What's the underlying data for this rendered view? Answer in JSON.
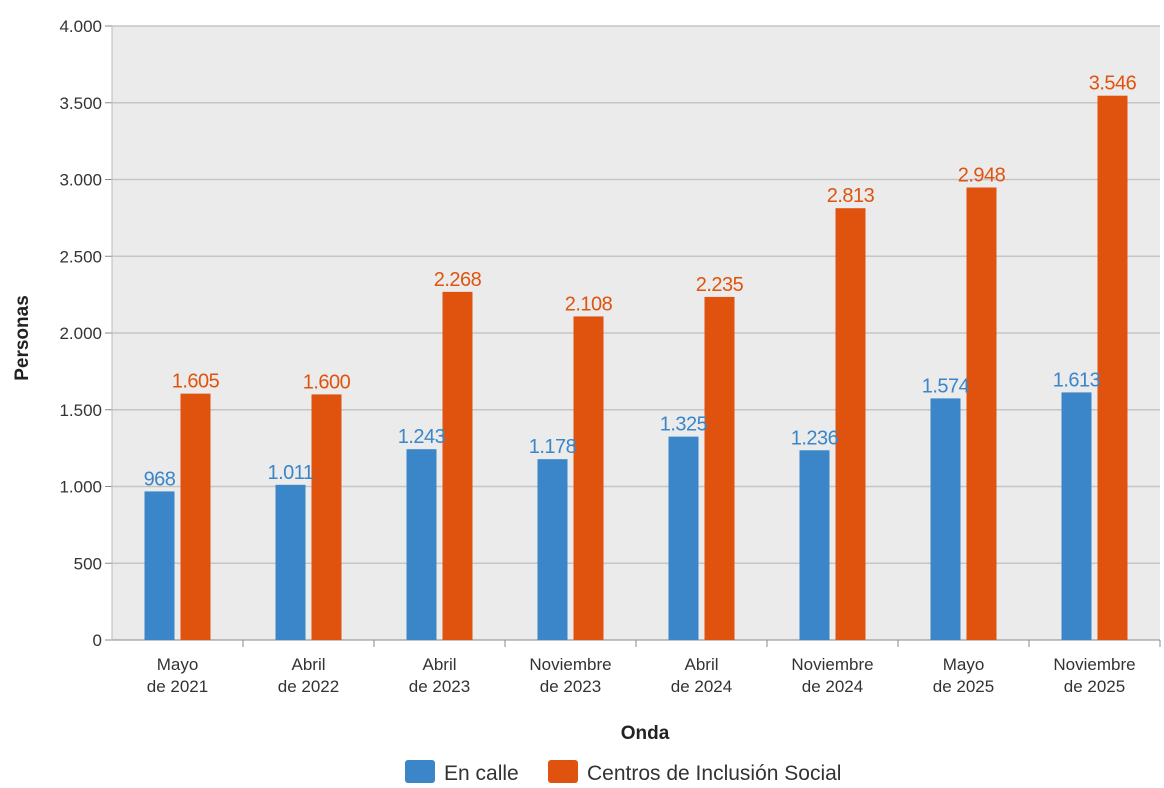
{
  "colors": {
    "en_calle": "#3a86c8",
    "centros": "#e0530f",
    "plot_bg": "#ebebeb",
    "grid": "#c6c6c6"
  },
  "chart_data": {
    "type": "bar",
    "title": "",
    "xlabel": "Onda",
    "ylabel": "Personas",
    "ylim": [
      0,
      4000
    ],
    "yticks": [
      0,
      500,
      1000,
      1500,
      2000,
      2500,
      3000,
      3500,
      4000
    ],
    "ytick_labels": [
      "0",
      "500",
      "1.000",
      "1.500",
      "2.000",
      "2.500",
      "3.000",
      "3.500",
      "4.000"
    ],
    "grid": true,
    "legend_position": "bottom",
    "categories": [
      [
        "Mayo",
        "de 2021"
      ],
      [
        "Abril",
        "de 2022"
      ],
      [
        "Abril",
        "de 2023"
      ],
      [
        "Noviembre",
        "de 2023"
      ],
      [
        "Abril",
        "de 2024"
      ],
      [
        "Noviembre",
        "de 2024"
      ],
      [
        "Mayo",
        "de 2025"
      ],
      [
        "Noviembre",
        "de 2025"
      ]
    ],
    "series": [
      {
        "name": "En calle",
        "values": [
          968,
          1011,
          1243,
          1178,
          1325,
          1236,
          1574,
          1613
        ],
        "labels": [
          "968",
          "1.011",
          "1.243",
          "1.178",
          "1.325",
          "1.236",
          "1.574",
          "1.613"
        ]
      },
      {
        "name": "Centros de Inclusión Social",
        "values": [
          1605,
          1600,
          2268,
          2108,
          2235,
          2813,
          2948,
          3546
        ],
        "labels": [
          "1.605",
          "1.600",
          "2.268",
          "2.108",
          "2.235",
          "2.813",
          "2.948",
          "3.546"
        ]
      }
    ]
  }
}
